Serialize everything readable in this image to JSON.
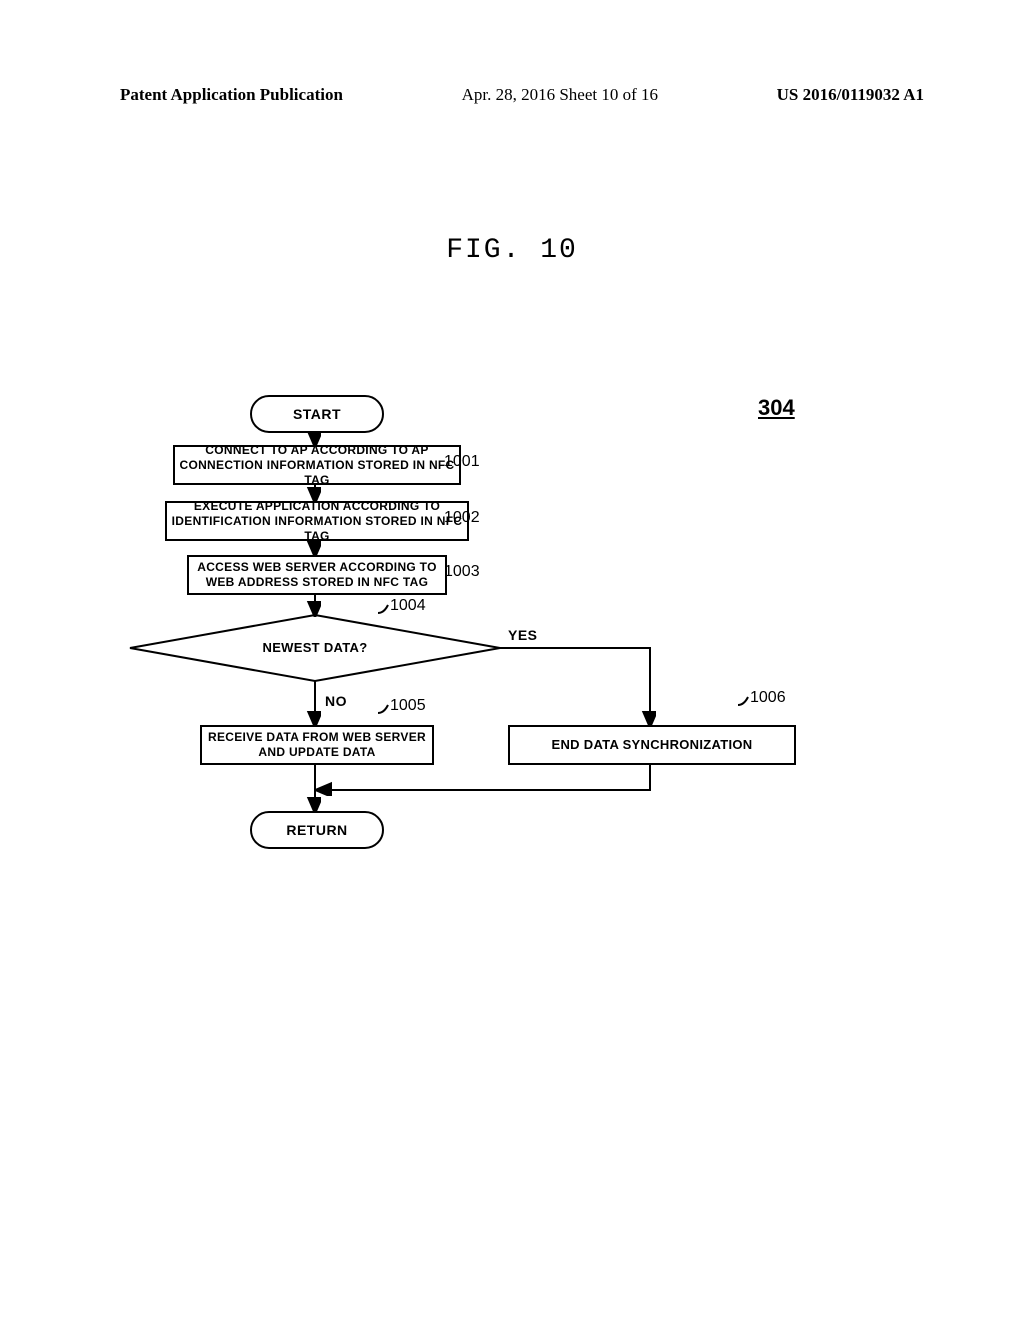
{
  "header": {
    "left": "Patent Application Publication",
    "center": "Apr. 28, 2016  Sheet 10 of 16",
    "right": "US 2016/0119032 A1"
  },
  "figure_title": "FIG. 10",
  "ref_number": "304",
  "flowchart": {
    "type": "flowchart",
    "background_color": "#ffffff",
    "border_color": "#000000",
    "line_width": 2.5,
    "font_family": "Arial",
    "nodes": {
      "start": {
        "label": "START",
        "shape": "terminator",
        "fontsize": 14
      },
      "step1001": {
        "label": "CONNECT TO AP ACCORDING TO AP\nCONNECTION INFORMATION STORED IN NFC TAG",
        "shape": "process",
        "num": "1001",
        "fontsize": 12
      },
      "step1002": {
        "label": "EXECUTE APPLICATION ACCORDING TO\nIDENTIFICATION INFORMATION STORED IN NFC TAG",
        "shape": "process",
        "num": "1002",
        "fontsize": 12
      },
      "step1003": {
        "label": "ACCESS WEB SERVER ACCORDING TO\nWEB ADDRESS STORED IN NFC TAG",
        "shape": "process",
        "num": "1003",
        "fontsize": 12
      },
      "decision1004": {
        "label": "NEWEST DATA?",
        "shape": "decision",
        "num": "1004",
        "yes": "YES",
        "no": "NO",
        "fontsize": 13
      },
      "step1005": {
        "label": "RECEIVE DATA FROM WEB SERVER\nAND UPDATE DATA",
        "shape": "process",
        "num": "1005",
        "fontsize": 12
      },
      "step1006": {
        "label": "END DATA SYNCHRONIZATION",
        "shape": "process",
        "num": "1006",
        "fontsize": 13
      },
      "return": {
        "label": "RETURN",
        "shape": "terminator",
        "fontsize": 14
      }
    }
  }
}
